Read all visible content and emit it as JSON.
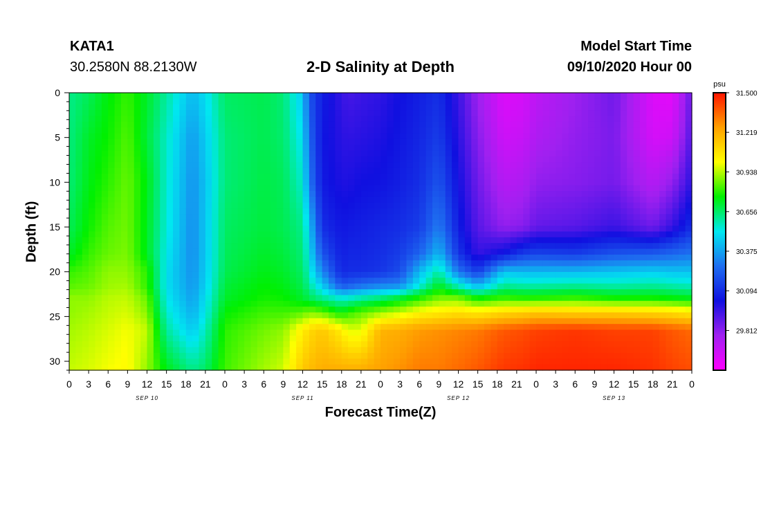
{
  "header": {
    "station": "KATA1",
    "coordinates": "30.2580N 88.2130W",
    "title": "2-D Salinity at Depth",
    "model_start_label": "Model Start Time",
    "model_start_value": "09/10/2020 Hour 00"
  },
  "chart_data": {
    "type": "heatmap",
    "title": "2-D Salinity at Depth",
    "xlabel": "Forecast Time(Z)",
    "ylabel": "Depth (ft)",
    "x_range_hours": [
      0,
      96
    ],
    "y_range_ft": [
      0,
      31
    ],
    "x_tick_labels": [
      "0",
      "3",
      "6",
      "9",
      "12",
      "15",
      "18",
      "21",
      "0",
      "3",
      "6",
      "9",
      "12",
      "15",
      "18",
      "21",
      "0",
      "3",
      "6",
      "9",
      "12",
      "15",
      "18",
      "21",
      "0",
      "3",
      "6",
      "9",
      "12",
      "15",
      "18",
      "21",
      "0"
    ],
    "y_tick_labels": [
      "0",
      "5",
      "10",
      "15",
      "20",
      "25",
      "30"
    ],
    "date_labels": [
      {
        "hour": 12,
        "text": "SEP 10"
      },
      {
        "hour": 36,
        "text": "SEP 11"
      },
      {
        "hour": 60,
        "text": "SEP 12"
      },
      {
        "hour": 84,
        "text": "SEP 13"
      }
    ],
    "colorbar": {
      "unit": "psu",
      "min": 29.53,
      "max": 31.5,
      "tick_labels": [
        "31.500",
        "31.219",
        "30.938",
        "30.656",
        "30.375",
        "30.094",
        "29.812"
      ],
      "colors": [
        "#ff00ff",
        "#a020f0",
        "#1010e0",
        "#1e6ef0",
        "#00e8f0",
        "#00f000",
        "#ffff00",
        "#ffa000",
        "#ff1400"
      ]
    },
    "depth_ft": [
      0,
      5,
      10,
      15,
      18,
      20,
      21.5,
      23,
      24.5,
      26.5,
      31
    ],
    "forecast_hours": [
      0,
      3,
      6,
      9,
      12,
      15,
      19,
      21,
      24,
      30,
      33,
      36,
      37,
      39,
      42,
      43,
      45,
      48,
      51,
      54,
      57,
      60,
      63,
      67,
      70,
      72,
      78,
      84,
      90,
      93,
      96
    ],
    "salinity_psu": [
      [
        30.62,
        30.63,
        30.64,
        30.67,
        30.72,
        30.81,
        30.84,
        30.9,
        30.9,
        30.92,
        30.95
      ],
      [
        30.67,
        30.72,
        30.74,
        30.77,
        30.81,
        30.84,
        30.86,
        30.9,
        30.92,
        30.94,
        30.97
      ],
      [
        30.75,
        30.77,
        30.8,
        30.84,
        30.86,
        30.9,
        30.91,
        30.94,
        30.95,
        30.97,
        31.0
      ],
      [
        30.81,
        30.84,
        30.86,
        30.87,
        30.88,
        30.9,
        30.92,
        30.95,
        30.97,
        31.0,
        31.02
      ],
      [
        30.72,
        30.7,
        30.74,
        30.73,
        30.73,
        30.8,
        30.8,
        30.86,
        30.89,
        30.95,
        30.9
      ],
      [
        30.6,
        30.56,
        30.55,
        30.54,
        30.52,
        30.5,
        30.5,
        30.52,
        30.55,
        30.6,
        30.74
      ],
      [
        30.42,
        30.36,
        30.34,
        30.33,
        30.33,
        30.34,
        30.35,
        30.37,
        30.4,
        30.45,
        30.62
      ],
      [
        30.5,
        30.46,
        30.44,
        30.45,
        30.45,
        30.46,
        30.47,
        30.5,
        30.52,
        30.57,
        30.66
      ],
      [
        30.66,
        30.64,
        30.64,
        30.66,
        30.67,
        30.68,
        30.7,
        30.72,
        30.76,
        30.8,
        30.82
      ],
      [
        30.68,
        30.68,
        30.69,
        30.7,
        30.72,
        30.74,
        30.76,
        30.78,
        30.82,
        30.87,
        30.92
      ],
      [
        30.64,
        30.65,
        30.67,
        30.68,
        30.7,
        30.72,
        30.74,
        30.77,
        30.82,
        30.9,
        30.96
      ],
      [
        30.45,
        30.5,
        30.55,
        30.62,
        30.64,
        30.66,
        30.68,
        30.72,
        30.84,
        31.05,
        31.15
      ],
      [
        30.2,
        30.25,
        30.3,
        30.45,
        30.5,
        30.55,
        30.6,
        30.68,
        30.88,
        31.1,
        31.18
      ],
      [
        30.06,
        30.04,
        30.05,
        30.1,
        30.2,
        30.32,
        30.45,
        30.62,
        30.85,
        31.15,
        31.22
      ],
      [
        29.96,
        29.98,
        30.0,
        30.04,
        30.06,
        30.08,
        30.2,
        30.55,
        30.75,
        31.05,
        31.22
      ],
      [
        29.93,
        29.97,
        30.0,
        30.05,
        30.08,
        30.1,
        30.22,
        30.56,
        30.8,
        30.98,
        31.22
      ],
      [
        29.95,
        29.98,
        30.02,
        30.06,
        30.08,
        30.1,
        30.26,
        30.6,
        30.85,
        30.98,
        31.22
      ],
      [
        29.97,
        30.0,
        30.03,
        30.08,
        30.1,
        30.12,
        30.3,
        30.65,
        30.9,
        31.2,
        31.25
      ],
      [
        30.02,
        30.04,
        30.06,
        30.1,
        30.14,
        30.18,
        30.32,
        30.72,
        30.95,
        31.22,
        31.28
      ],
      [
        30.06,
        30.08,
        30.1,
        30.14,
        30.24,
        30.42,
        30.52,
        30.8,
        31.02,
        31.26,
        31.32
      ],
      [
        30.1,
        30.14,
        30.2,
        30.3,
        30.42,
        30.6,
        30.72,
        30.88,
        31.05,
        31.28,
        31.32
      ],
      [
        29.95,
        29.98,
        30.02,
        30.06,
        30.12,
        30.28,
        30.55,
        30.88,
        31.08,
        31.3,
        31.35
      ],
      [
        29.78,
        29.82,
        29.86,
        29.9,
        29.96,
        30.14,
        30.4,
        30.78,
        31.05,
        31.32,
        31.38
      ],
      [
        29.62,
        29.66,
        29.72,
        29.8,
        30.04,
        30.44,
        30.6,
        30.82,
        31.1,
        31.38,
        31.44
      ],
      [
        29.64,
        29.68,
        29.74,
        29.82,
        30.14,
        30.42,
        30.58,
        30.8,
        31.12,
        31.4,
        31.45
      ],
      [
        29.7,
        29.74,
        29.8,
        29.88,
        30.16,
        30.42,
        30.58,
        30.8,
        31.14,
        31.42,
        31.47
      ],
      [
        29.78,
        29.8,
        29.82,
        29.9,
        30.14,
        30.42,
        30.6,
        30.82,
        31.12,
        31.44,
        31.47
      ],
      [
        29.86,
        29.84,
        29.85,
        29.95,
        30.2,
        30.44,
        30.58,
        30.78,
        31.12,
        31.42,
        31.47
      ],
      [
        29.62,
        29.64,
        29.72,
        29.86,
        30.22,
        30.46,
        30.6,
        30.78,
        31.1,
        31.42,
        31.45
      ],
      [
        29.6,
        29.66,
        29.8,
        29.96,
        30.25,
        30.44,
        30.58,
        30.76,
        31.08,
        31.38,
        31.42
      ],
      [
        29.88,
        29.92,
        29.98,
        30.1,
        30.28,
        30.44,
        30.56,
        30.74,
        31.05,
        31.35,
        31.4
      ]
    ]
  }
}
